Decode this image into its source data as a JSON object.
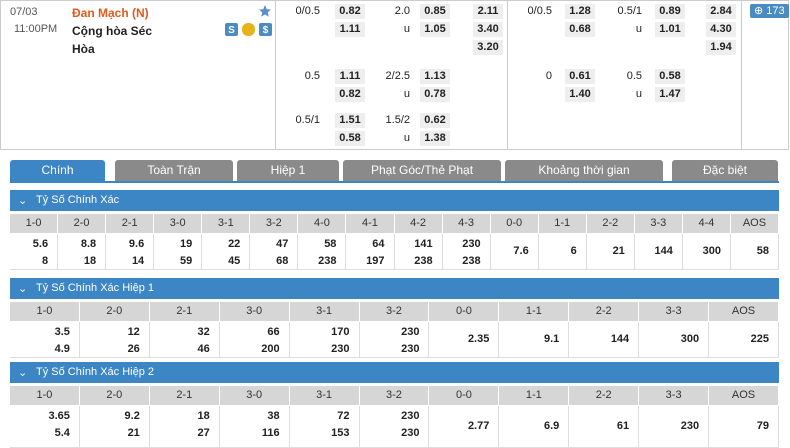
{
  "match": {
    "date": "07/03",
    "time": "11:00PM",
    "home": "Đan Mạch (N)",
    "away": "Cộng hòa Séc",
    "draw": "Hòa",
    "more_count": "173"
  },
  "full_time": {
    "groups": [
      {
        "handicap": {
          "line": "0/0.5",
          "home": "0.82",
          "away": "1.11"
        },
        "over_under": {
          "line": "2.0",
          "over": "0.85",
          "under_label": "u",
          "under": "1.05"
        },
        "one_x_two": [
          "2.11",
          "3.40",
          "3.20"
        ]
      },
      {
        "handicap": {
          "line": "0.5",
          "home": "1.11",
          "away": "0.82"
        },
        "over_under": {
          "line": "2/2.5",
          "over": "1.13",
          "under_label": "u",
          "under": "0.78"
        }
      },
      {
        "handicap": {
          "line": "0.5/1",
          "home": "1.51",
          "away": "0.58"
        },
        "over_under": {
          "line": "1.5/2",
          "over": "0.62",
          "under_label": "u",
          "under": "1.38"
        }
      }
    ]
  },
  "first_half": {
    "groups": [
      {
        "handicap": {
          "line": "0/0.5",
          "home": "1.28",
          "away": "0.68"
        },
        "over_under": {
          "line": "0.5/1",
          "over": "0.89",
          "under_label": "u",
          "under": "1.01"
        },
        "one_x_two": [
          "2.84",
          "4.30",
          "1.94"
        ]
      },
      {
        "handicap": {
          "line": "0",
          "home": "0.61",
          "away": "1.40"
        },
        "over_under": {
          "line": "0.5",
          "over": "0.58",
          "under_label": "u",
          "under": "1.47"
        }
      }
    ]
  },
  "tabs": [
    "Chính",
    "Toàn Trận",
    "Hiệp 1",
    "Phạt Góc/Thẻ Phạt",
    "Khoảng thời gian",
    "Đặc biệt"
  ],
  "sections": [
    {
      "title": "Tỷ Số Chính Xác",
      "headers": [
        "1-0",
        "2-0",
        "2-1",
        "3-0",
        "3-1",
        "3-2",
        "4-0",
        "4-1",
        "4-2",
        "4-3",
        "0-0",
        "1-1",
        "2-2",
        "3-3",
        "4-4",
        "AOS"
      ],
      "cells": [
        [
          "5.6",
          "8"
        ],
        [
          "8.8",
          "18"
        ],
        [
          "9.6",
          "14"
        ],
        [
          "19",
          "59"
        ],
        [
          "22",
          "45"
        ],
        [
          "47",
          "68"
        ],
        [
          "58",
          "238"
        ],
        [
          "64",
          "197"
        ],
        [
          "141",
          "238"
        ],
        [
          "230",
          "238"
        ],
        [
          "7.6"
        ],
        [
          "6"
        ],
        [
          "21"
        ],
        [
          "144"
        ],
        [
          "300"
        ],
        [
          "58"
        ]
      ]
    },
    {
      "title": "Tỷ Số Chính Xác Hiệp 1",
      "headers": [
        "1-0",
        "2-0",
        "2-1",
        "3-0",
        "3-1",
        "3-2",
        "0-0",
        "1-1",
        "2-2",
        "3-3",
        "AOS"
      ],
      "cells": [
        [
          "3.5",
          "4.9"
        ],
        [
          "12",
          "26"
        ],
        [
          "32",
          "46"
        ],
        [
          "66",
          "200"
        ],
        [
          "170",
          "230"
        ],
        [
          "230",
          "230"
        ],
        [
          "2.35"
        ],
        [
          "9.1"
        ],
        [
          "144"
        ],
        [
          "300"
        ],
        [
          "225"
        ]
      ]
    },
    {
      "title": "Tỷ Số Chính Xác Hiệp 2",
      "headers": [
        "1-0",
        "2-0",
        "2-1",
        "3-0",
        "3-1",
        "3-2",
        "0-0",
        "1-1",
        "2-2",
        "3-3",
        "AOS"
      ],
      "cells": [
        [
          "3.65",
          "5.4"
        ],
        [
          "9.2",
          "21"
        ],
        [
          "18",
          "27"
        ],
        [
          "38",
          "116"
        ],
        [
          "72",
          "153"
        ],
        [
          "230",
          "230"
        ],
        [
          "2.77"
        ],
        [
          "6.9"
        ],
        [
          "61"
        ],
        [
          "230"
        ],
        [
          "79"
        ]
      ]
    }
  ]
}
